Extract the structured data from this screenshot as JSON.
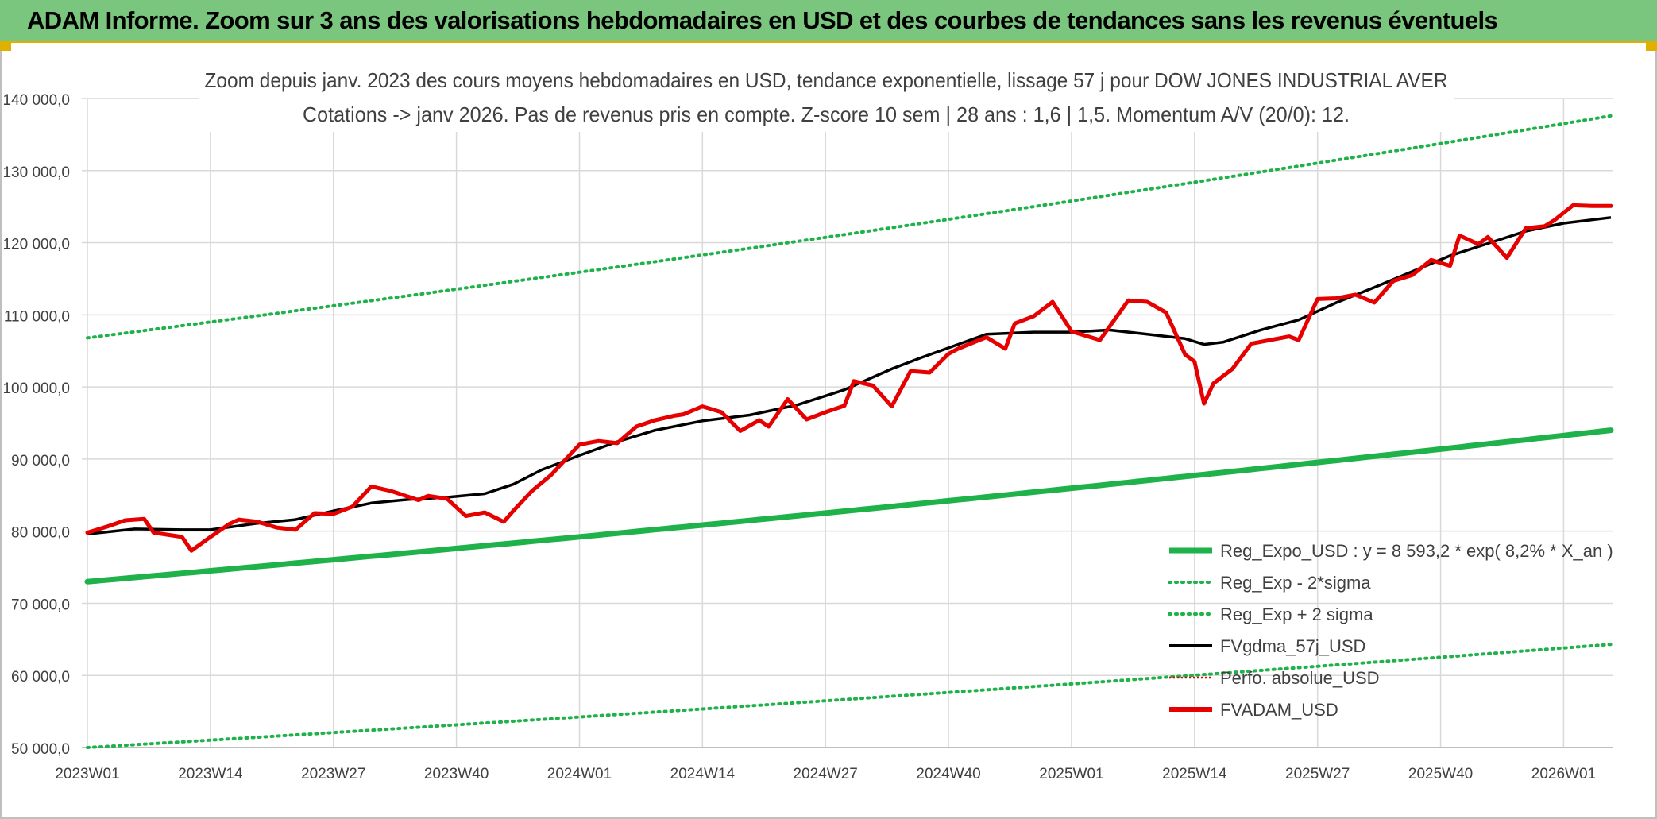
{
  "banner": {
    "title": "ADAM Informe. Zoom sur 3 ans des valorisations hebdomadaires en USD et des courbes de tendances sans les revenus éventuels"
  },
  "colors": {
    "banner_bg": "#7bc67e",
    "banner_border": "#e0b000",
    "trend_green": "#1fb24a",
    "sigma_green": "#1fb24a",
    "smooth_black": "#000000",
    "price_red": "#e60000",
    "grid": "#d9d9d9"
  },
  "chart_data": {
    "type": "line",
    "title_line1": "Zoom depuis janv. 2023 des cours moyens hebdomadaires en USD, tendance exponentielle, lissage 57 j pour DOW JONES INDUSTRIAL AVER",
    "title_line2": "Cotations -> janv 2026. Pas de revenus pris en compte. Z-score 10 sem | 28 ans : 1,6 | 1,5. Momentum A/V (20/0): 12.",
    "ylim": [
      50000,
      140000
    ],
    "y_ticks": [
      "50 000,0",
      "60 000,0",
      "70 000,0",
      "80 000,0",
      "90 000,0",
      "100 000,0",
      "110 000,0",
      "120 000,0",
      "130 000,0",
      "140 000,0"
    ],
    "x_ticks": [
      "2023W01",
      "2023W14",
      "2023W27",
      "2023W40",
      "2024W01",
      "2024W14",
      "2024W27",
      "2024W40",
      "2025W01",
      "2025W14",
      "2025W27",
      "2025W40",
      "2026W01"
    ],
    "x_tick_index": [
      0,
      13,
      26,
      39,
      52,
      65,
      78,
      91,
      104,
      117,
      130,
      143,
      156
    ],
    "n_weeks": 162,
    "legend": [
      "Reg_Expo_USD : y = 8 593,2 * exp( 8,2% *  X_an )",
      "Reg_Exp - 2*sigma",
      "Reg_Exp + 2 sigma",
      "FVgdma_57j_USD",
      "Perfo. absolue_USD",
      "FVADAM_USD"
    ],
    "series": [
      {
        "name": "Reg_Expo_USD",
        "style": "thick",
        "start": 73000,
        "end": 94000
      },
      {
        "name": "Reg_Exp - 2*sigma",
        "style": "dotted",
        "start": 50000,
        "end": 64300
      },
      {
        "name": "Reg_Exp + 2 sigma",
        "style": "dotted",
        "start": 106800,
        "end": 137600
      },
      {
        "name": "FVgdma_57j_USD",
        "style": "solid",
        "x": [
          0,
          5,
          10,
          13,
          18,
          22,
          26,
          30,
          34,
          38,
          42,
          45,
          48,
          52,
          56,
          60,
          65,
          70,
          75,
          80,
          85,
          88,
          92,
          95,
          100,
          104,
          108,
          112,
          116,
          118,
          120,
          124,
          128,
          132,
          136,
          140,
          144,
          148,
          152,
          156,
          161
        ],
        "values": [
          79600,
          80300,
          80200,
          80200,
          81100,
          81600,
          82800,
          83900,
          84400,
          84700,
          85200,
          86500,
          88500,
          90500,
          92400,
          94000,
          95300,
          96100,
          97500,
          99600,
          102500,
          104000,
          105900,
          107300,
          107600,
          107600,
          107900,
          107300,
          106700,
          105900,
          106200,
          107900,
          109300,
          111700,
          113800,
          116000,
          118200,
          119900,
          121600,
          122700,
          123500
        ]
      },
      {
        "name": "FVADAM_USD",
        "style": "red",
        "x": [
          0,
          2,
          4,
          6,
          7,
          10,
          11,
          13,
          15,
          16,
          18,
          20,
          22,
          24,
          26,
          28,
          30,
          32,
          35,
          36,
          38,
          40,
          42,
          44,
          45,
          47,
          49,
          52,
          54,
          56,
          58,
          60,
          62,
          63,
          65,
          67,
          69,
          71,
          72,
          74,
          76,
          78,
          80,
          81,
          83,
          85,
          87,
          89,
          91,
          92,
          95,
          97,
          98,
          100,
          102,
          104,
          107,
          110,
          112,
          114,
          116,
          117,
          118,
          119,
          121,
          123,
          125,
          127,
          128,
          130,
          132,
          134,
          136,
          138,
          140,
          142,
          144,
          145,
          147,
          148,
          150,
          152,
          154,
          155,
          157,
          159,
          161
        ],
        "values": [
          79800,
          80600,
          81500,
          81700,
          79800,
          79200,
          77300,
          79200,
          81000,
          81600,
          81300,
          80500,
          80200,
          82500,
          82400,
          83400,
          86200,
          85600,
          84300,
          84900,
          84500,
          82100,
          82600,
          81300,
          82800,
          85600,
          87800,
          92000,
          92500,
          92200,
          94500,
          95400,
          96000,
          96200,
          97300,
          96500,
          93900,
          95400,
          94500,
          98300,
          95500,
          96500,
          97400,
          100800,
          100200,
          97300,
          102200,
          102000,
          104600,
          105300,
          106900,
          105300,
          108800,
          109800,
          111800,
          107700,
          106500,
          112000,
          111800,
          110300,
          104500,
          103500,
          97700,
          100500,
          102500,
          106000,
          106500,
          107000,
          106500,
          112200,
          112300,
          112800,
          111700,
          114700,
          115500,
          117600,
          116800,
          121000,
          119800,
          120800,
          117900,
          122000,
          122300,
          123100,
          125200,
          125100,
          125100
        ]
      }
    ]
  }
}
